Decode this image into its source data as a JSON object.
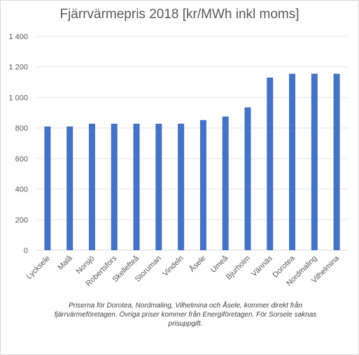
{
  "chart_data": {
    "type": "bar",
    "title": "Fjärrvärmepris 2018 [kr/MWh inkl moms]",
    "xlabel": "",
    "ylabel": "",
    "categories": [
      "Lycksele",
      "Malå",
      "Norsjö",
      "Robertsfors",
      "Skellefteå",
      "Storuman",
      "Vindeln",
      "Åsele",
      "Umeå",
      "Bjurholm",
      "Vännäs",
      "Dorotea",
      "Nordmaling",
      "Vilhelmina"
    ],
    "values": [
      810,
      810,
      828,
      828,
      828,
      828,
      828,
      852,
      875,
      935,
      1130,
      1155,
      1155,
      1155
    ],
    "ylim": [
      0,
      1400
    ],
    "yticks": [
      0,
      200,
      400,
      600,
      800,
      1000,
      1200,
      1400
    ],
    "ytick_labels": [
      "0",
      "200",
      "400",
      "600",
      "800",
      "1 000",
      "1 200",
      "1 400"
    ],
    "grid": true,
    "bar_color": "#4472C4",
    "note": "Priserna för Dorotea, Nordmaling, Vilhelmina och Åsele, kommer direkt från fjärrvärmeföretagen. Övriga priser kommer från Energiföretagen. För Sorsele saknas prisuppgift."
  }
}
